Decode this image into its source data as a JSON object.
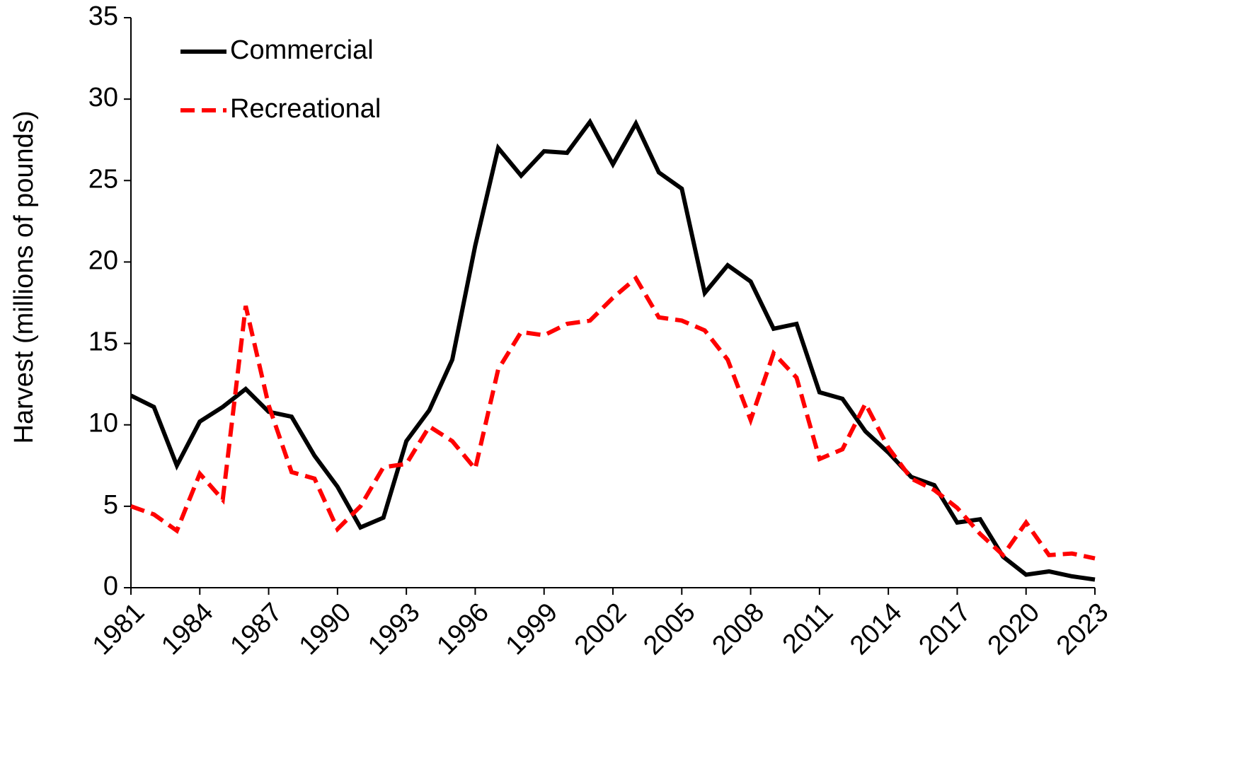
{
  "chart_data": {
    "type": "line",
    "ylabel": "Harvest (millions of pounds)",
    "x": [
      1981,
      1982,
      1983,
      1984,
      1985,
      1986,
      1987,
      1988,
      1989,
      1990,
      1991,
      1992,
      1993,
      1994,
      1995,
      1996,
      1997,
      1998,
      1999,
      2000,
      2001,
      2002,
      2003,
      2004,
      2005,
      2006,
      2007,
      2008,
      2009,
      2010,
      2011,
      2012,
      2013,
      2014,
      2015,
      2016,
      2017,
      2018,
      2019,
      2020,
      2021,
      2022,
      2023
    ],
    "series": [
      {
        "name": "Commercial",
        "color": "#000000",
        "dash": "solid",
        "values": [
          11.8,
          11.1,
          7.5,
          10.2,
          11.1,
          12.2,
          10.8,
          10.5,
          8.1,
          6.2,
          3.7,
          4.3,
          9.0,
          10.9,
          14.0,
          21.0,
          27.0,
          25.3,
          26.8,
          26.7,
          28.6,
          26.0,
          28.5,
          25.5,
          24.5,
          18.1,
          19.8,
          18.8,
          15.9,
          16.2,
          12.0,
          11.6,
          9.6,
          8.3,
          6.8,
          6.3,
          4.0,
          4.2,
          1.9,
          0.8,
          1.0,
          0.7,
          0.5
        ]
      },
      {
        "name": "Recreational",
        "color": "#ff0000",
        "dash": "dashed",
        "values": [
          5.0,
          4.5,
          3.5,
          7.0,
          5.4,
          17.3,
          11.2,
          7.1,
          6.7,
          3.6,
          5.0,
          7.4,
          7.6,
          9.9,
          9.0,
          7.3,
          13.4,
          15.7,
          15.5,
          16.2,
          16.4,
          17.8,
          19.0,
          16.6,
          16.4,
          15.8,
          14.0,
          10.3,
          14.4,
          12.9,
          7.9,
          8.5,
          11.3,
          8.6,
          6.7,
          6.0,
          4.9,
          3.3,
          2.0,
          4.0,
          2.0,
          2.1,
          1.8
        ]
      }
    ],
    "xlim": [
      1981,
      2023
    ],
    "xticks": [
      1981,
      1984,
      1987,
      1990,
      1993,
      1996,
      1999,
      2002,
      2005,
      2008,
      2011,
      2014,
      2017,
      2020,
      2023
    ],
    "ylim": [
      0,
      35
    ],
    "yticks": [
      0,
      5,
      10,
      15,
      20,
      25,
      30,
      35
    ],
    "grid": false,
    "legend": "upper left"
  }
}
